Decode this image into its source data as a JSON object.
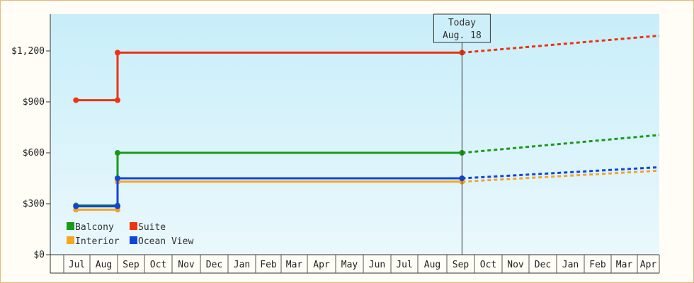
{
  "chart_data": {
    "type": "line",
    "title": "",
    "xlabel": "",
    "ylabel": "",
    "y_ticks": [
      "$0",
      "$300",
      "$600",
      "$900",
      "$1,200"
    ],
    "ylim": [
      0,
      1200
    ],
    "months": [
      "Jul",
      "Aug",
      "Sep",
      "Oct",
      "Nov",
      "Dec",
      "Jan",
      "Feb",
      "Mar",
      "Apr",
      "May",
      "Jun",
      "Jul",
      "Aug",
      "Sep",
      "Oct",
      "Nov",
      "Dec",
      "Jan",
      "Feb",
      "Mar",
      "Apr"
    ],
    "today": {
      "line1": "Today",
      "line2": "Aug. 18"
    },
    "legend": {
      "placement": "bottom-left"
    },
    "series": [
      {
        "name": "Balcony",
        "color": "#1a9a1a",
        "history": [
          {
            "x": "2023-06-15",
            "y": 290
          },
          {
            "x": "2023-08-01",
            "y": 290
          },
          {
            "x": "2023-08-01",
            "y": 600
          },
          {
            "x": "2024-08-18",
            "y": 600
          }
        ],
        "forecast": [
          {
            "x": "2024-08-18",
            "y": 600
          },
          {
            "x": "2025-04-30",
            "y": 705
          }
        ]
      },
      {
        "name": "Suite",
        "color": "#ee3311",
        "history": [
          {
            "x": "2023-06-15",
            "y": 910
          },
          {
            "x": "2023-08-01",
            "y": 910
          },
          {
            "x": "2023-08-01",
            "y": 1190
          },
          {
            "x": "2024-08-18",
            "y": 1190
          }
        ],
        "forecast": [
          {
            "x": "2024-08-18",
            "y": 1190
          },
          {
            "x": "2025-04-30",
            "y": 1290
          }
        ]
      },
      {
        "name": "Interior",
        "color": "#f5a623",
        "history": [
          {
            "x": "2023-06-15",
            "y": 265
          },
          {
            "x": "2023-08-01",
            "y": 265
          },
          {
            "x": "2023-08-01",
            "y": 430
          },
          {
            "x": "2024-08-18",
            "y": 430
          }
        ],
        "forecast": [
          {
            "x": "2024-08-18",
            "y": 430
          },
          {
            "x": "2025-04-30",
            "y": 495
          }
        ]
      },
      {
        "name": "Ocean View",
        "color": "#1144dd",
        "history": [
          {
            "x": "2023-06-15",
            "y": 285
          },
          {
            "x": "2023-08-01",
            "y": 285
          },
          {
            "x": "2023-08-01",
            "y": 450
          },
          {
            "x": "2024-08-18",
            "y": 450
          }
        ],
        "forecast": [
          {
            "x": "2024-08-18",
            "y": 450
          },
          {
            "x": "2025-04-30",
            "y": 515
          }
        ]
      }
    ]
  }
}
